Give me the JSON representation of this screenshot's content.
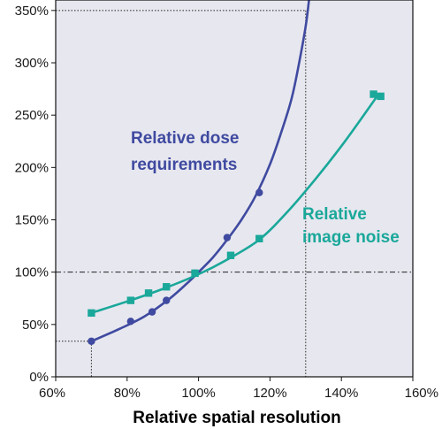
{
  "chart_data": {
    "type": "line",
    "xlabel": "Relative spatial resolution",
    "ylabel": "",
    "xlim": [
      60,
      160
    ],
    "ylim": [
      0,
      360
    ],
    "x_ticks": [
      "60%",
      "80%",
      "100%",
      "120%",
      "140%",
      "160%"
    ],
    "x_tick_values": [
      60,
      80,
      100,
      120,
      140,
      160
    ],
    "y_ticks": [
      "0%",
      "50%",
      "100%",
      "150%",
      "200%",
      "250%",
      "300%",
      "350%"
    ],
    "y_tick_values": [
      0,
      50,
      100,
      150,
      200,
      250,
      300,
      350
    ],
    "grid": false,
    "background": "#e7e7ef",
    "reference_lines": {
      "dotted": [
        {
          "x": 130,
          "y": 350
        },
        {
          "x": 70,
          "y": 34
        }
      ],
      "dashdot": [
        {
          "y": 100
        }
      ]
    },
    "series": [
      {
        "name": "Relative dose requirements",
        "color": "#3f4aa0",
        "marker": "circle",
        "points": [
          [
            70,
            34
          ],
          [
            81,
            53
          ],
          [
            87,
            62
          ],
          [
            91,
            73
          ],
          [
            99,
            99
          ],
          [
            108,
            133
          ],
          [
            117,
            176
          ]
        ],
        "curve": [
          [
            70,
            34
          ],
          [
            78,
            46
          ],
          [
            85,
            58
          ],
          [
            92,
            75
          ],
          [
            97,
            90
          ],
          [
            100,
            100
          ],
          [
            104,
            114
          ],
          [
            108,
            131
          ],
          [
            112,
            150
          ],
          [
            116,
            173
          ],
          [
            120,
            203
          ],
          [
            123,
            232
          ],
          [
            126,
            265
          ],
          [
            128,
            297
          ],
          [
            130,
            335
          ],
          [
            131,
            362
          ]
        ],
        "label_lines": [
          "Relative dose",
          "requirements"
        ]
      },
      {
        "name": "Relative image noise",
        "color": "#1aa89a",
        "marker": "square",
        "points": [
          [
            70,
            61
          ],
          [
            81,
            73
          ],
          [
            86,
            80
          ],
          [
            91,
            86
          ],
          [
            99,
            99
          ],
          [
            109,
            116
          ],
          [
            117,
            132
          ],
          [
            149,
            270
          ],
          [
            151,
            268
          ]
        ],
        "curve": [
          [
            70,
            61
          ],
          [
            80,
            72
          ],
          [
            90,
            84
          ],
          [
            100,
            98
          ],
          [
            108,
            112
          ],
          [
            117,
            131
          ],
          [
            125,
            158
          ],
          [
            133,
            190
          ],
          [
            141,
            225
          ],
          [
            150,
            268
          ]
        ],
        "label_lines": [
          "Relative",
          "image noise"
        ]
      }
    ]
  }
}
